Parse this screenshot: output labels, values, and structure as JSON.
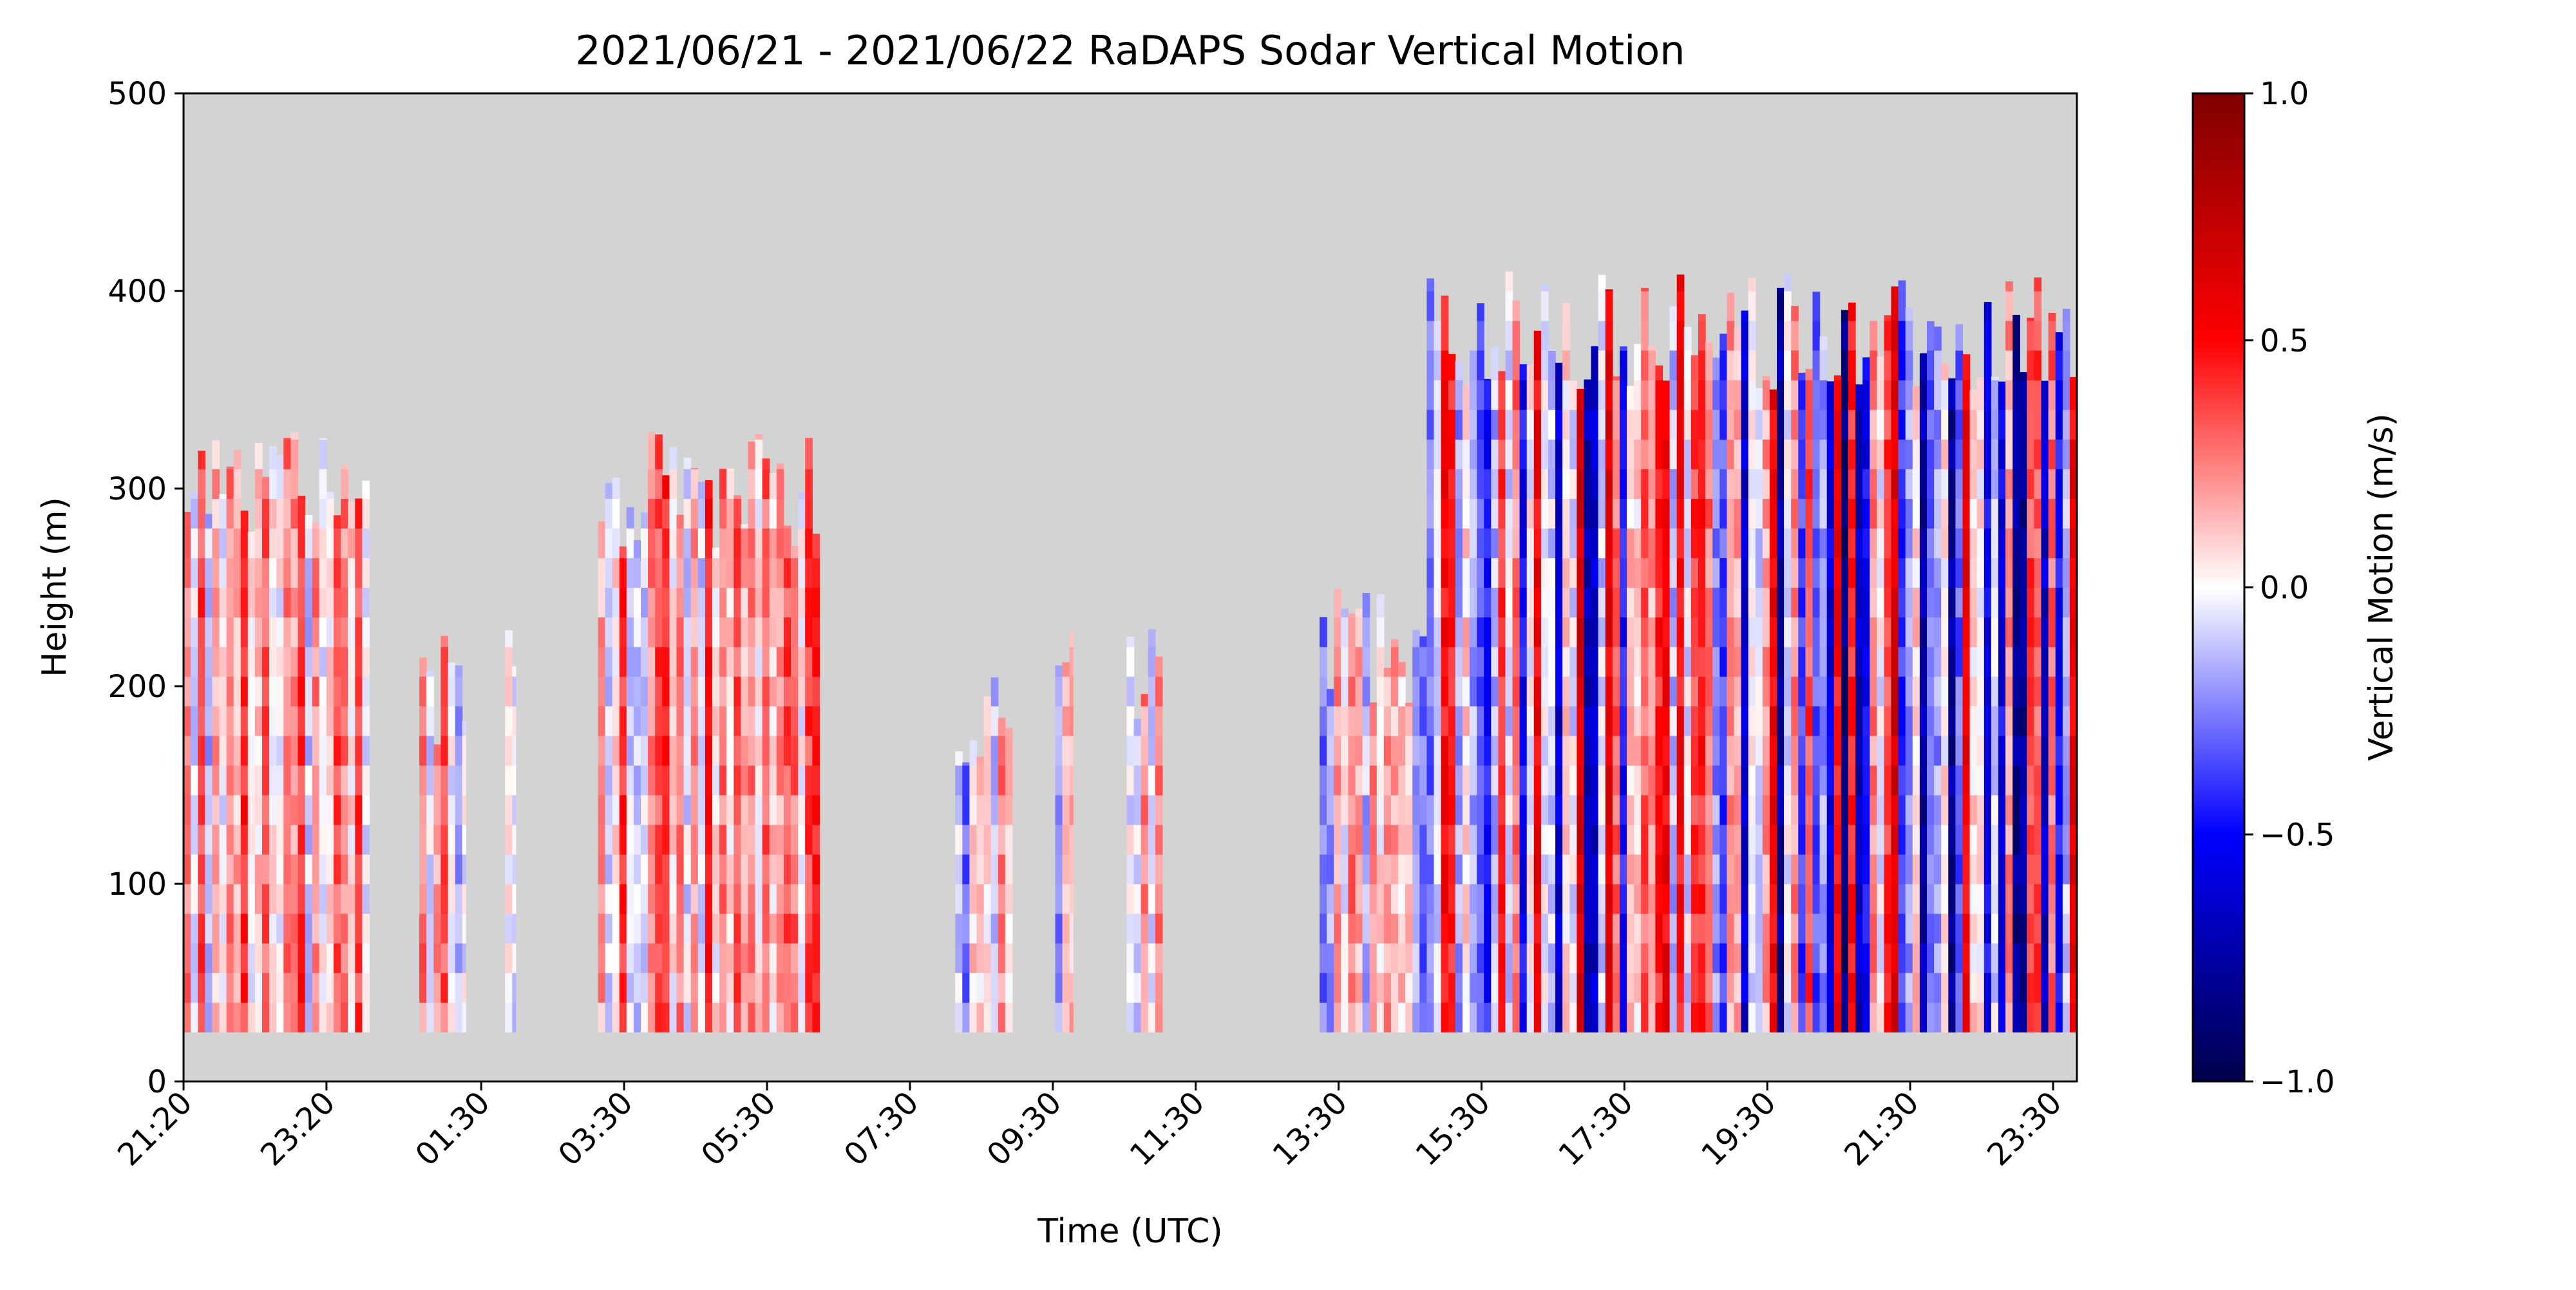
{
  "chart_data": {
    "type": "heatmap",
    "title": "2021/06/21 - 2021/06/22 RaDAPS Sodar Vertical Motion",
    "xlabel": "Time (UTC)",
    "ylabel": "Height (m)",
    "x_ticks": [
      "21:20",
      "23:20",
      "01:30",
      "03:30",
      "05:30",
      "07:30",
      "09:30",
      "11:30",
      "13:30",
      "15:30",
      "17:30",
      "19:30",
      "21:30",
      "23:30"
    ],
    "x_tick_hours": [
      0,
      2,
      4.1667,
      6.1667,
      8.1667,
      10.1667,
      12.1667,
      14.1667,
      16.1667,
      18.1667,
      20.1667,
      22.1667,
      24.1667,
      26.1667
    ],
    "x_range_hours": [
      0,
      26.5
    ],
    "ylim": [
      0,
      500
    ],
    "y_ticks": [
      0,
      100,
      200,
      300,
      400,
      500
    ],
    "colorbar": {
      "label": "Vertical Motion (m/s)",
      "range": [
        -1.0,
        1.0
      ],
      "ticks": [
        -1.0,
        -0.5,
        0.0,
        0.5,
        1.0
      ],
      "tick_labels": [
        "−1.0",
        "−0.5",
        "0.0",
        "0.5",
        "1.0"
      ],
      "colormap": "seismic"
    },
    "missing_color": "#d3d3d3",
    "grid": false,
    "data_segments": [
      {
        "t_start": 0.0,
        "t_end": 2.6,
        "z_top": 300,
        "mean_w": 0.15
      },
      {
        "t_start": 3.3,
        "t_end": 3.95,
        "z_top": 200,
        "mean_w": 0.05
      },
      {
        "t_start": 4.5,
        "t_end": 4.65,
        "z_top": 235,
        "mean_w": 0.1
      },
      {
        "t_start": 5.8,
        "t_end": 8.9,
        "z_top": 300,
        "mean_w": 0.2
      },
      {
        "t_start": 10.8,
        "t_end": 11.6,
        "z_top": 180,
        "mean_w": -0.05
      },
      {
        "t_start": 12.2,
        "t_end": 12.45,
        "z_top": 210,
        "mean_w": 0.0
      },
      {
        "t_start": 13.2,
        "t_end": 13.7,
        "z_top": 200,
        "mean_w": 0.05
      },
      {
        "t_start": 15.9,
        "t_end": 17.4,
        "z_top": 220,
        "mean_w": 0.0
      },
      {
        "t_start": 17.4,
        "t_end": 26.5,
        "z_top": 380,
        "mean_w": -0.1
      }
    ]
  }
}
